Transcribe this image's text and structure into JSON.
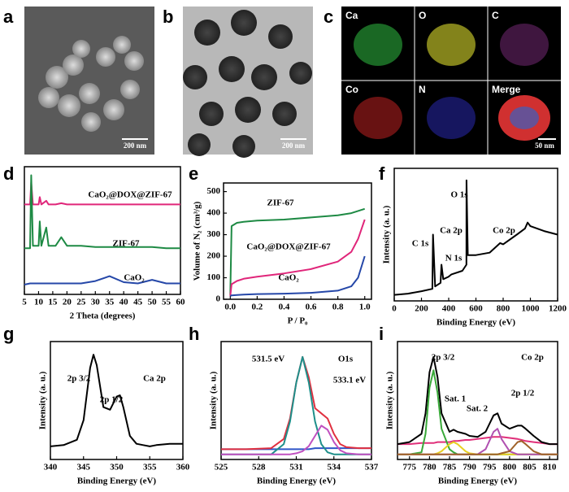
{
  "panel_labels": [
    "a",
    "b",
    "c",
    "d",
    "e",
    "f",
    "g",
    "h",
    "i"
  ],
  "images": {
    "a_scale": "200 nm",
    "b_scale": "200 nm",
    "c_scale": "50 nm",
    "c_tiles": [
      "Ca",
      "O",
      "C",
      "Co",
      "N",
      "Merge"
    ]
  },
  "chart_data": [
    {
      "type": "line",
      "xlabel": "2 Theta (degrees)",
      "xlim": [
        5,
        60
      ],
      "ylim": [
        0,
        105
      ],
      "xticks": [
        5,
        10,
        15,
        20,
        25,
        30,
        35,
        40,
        45,
        50,
        55,
        60
      ],
      "x": [
        5,
        7,
        7.4,
        8,
        10,
        10.4,
        11,
        12.7,
        13.5,
        16,
        18,
        20,
        25,
        30,
        35,
        40,
        45,
        50,
        55,
        60
      ],
      "annotations": [
        "CaO₂@DOX@ZIF-67",
        "ZIF-67",
        "CaO₂"
      ],
      "series": [
        {
          "color": "#e0267a",
          "values": [
            74,
            74,
            92,
            74,
            74,
            80,
            74,
            77,
            74,
            74,
            75,
            74,
            74,
            74,
            74,
            74,
            74,
            74,
            74,
            74
          ]
        },
        {
          "color": "#1e8a44",
          "values": [
            38,
            38,
            98,
            40,
            40,
            60,
            40,
            55,
            40,
            40,
            47,
            40,
            40,
            39,
            39,
            39,
            39,
            39,
            38,
            38
          ]
        },
        {
          "color": "#2547a8",
          "values": [
            8,
            9,
            9,
            9,
            9,
            9,
            9,
            9,
            9,
            9,
            9,
            9,
            9,
            11,
            15,
            10,
            9,
            12,
            9,
            9
          ]
        }
      ]
    },
    {
      "type": "line",
      "xlabel": "P / P₀",
      "ylabel": "Volume of N₂ (cm³/g)",
      "xlim": [
        -0.05,
        1.05
      ],
      "ylim": [
        0,
        540
      ],
      "xticks": [
        {
          "value": 0,
          "label": "0.0"
        },
        0.2,
        0.4,
        0.6,
        0.8,
        {
          "value": 1,
          "label": "1.0"
        }
      ],
      "yticks": [
        0,
        100,
        200,
        300,
        400,
        500
      ],
      "x": [
        0,
        0.01,
        0.05,
        0.1,
        0.2,
        0.4,
        0.6,
        0.8,
        0.9,
        0.95,
        1.0
      ],
      "annotations": [
        "ZIF-67",
        "CaO₂@DOX@ZIF-67",
        "CaO₂"
      ],
      "series": [
        {
          "color": "#1e8a44",
          "values": [
            20,
            340,
            355,
            360,
            365,
            370,
            380,
            390,
            400,
            410,
            420
          ]
        },
        {
          "color": "#e0267a",
          "values": [
            15,
            70,
            85,
            95,
            105,
            120,
            140,
            175,
            220,
            280,
            370
          ]
        },
        {
          "color": "#2547a8",
          "values": [
            15,
            18,
            20,
            22,
            24,
            26,
            30,
            40,
            60,
            100,
            200
          ]
        }
      ]
    },
    {
      "type": "line",
      "xlabel": "Binding Energy (eV)",
      "ylabel": "Intensity (a. u.)",
      "xlim": [
        0,
        1200
      ],
      "ylim": [
        0,
        110
      ],
      "xticks": [
        0,
        200,
        400,
        600,
        800,
        1000,
        1200
      ],
      "x": [
        0,
        100,
        200,
        280,
        285,
        300,
        340,
        347,
        360,
        398,
        420,
        500,
        530,
        531,
        540,
        600,
        700,
        778,
        800,
        900,
        960,
        980,
        1000,
        1100,
        1200
      ],
      "annotations": [
        "C 1s",
        "Ca 2p",
        "N 1s",
        "O 1s",
        "Co 2p"
      ],
      "series": [
        {
          "color": "#000000",
          "values": [
            5,
            6,
            8,
            10,
            55,
            12,
            15,
            30,
            18,
            20,
            22,
            25,
            30,
            100,
            38,
            38,
            40,
            48,
            47,
            55,
            60,
            65,
            62,
            58,
            55
          ]
        }
      ]
    },
    {
      "type": "line",
      "xlabel": "Binding Energy (eV)",
      "ylabel": "Intensity (a. u.)",
      "xlim": [
        340,
        360
      ],
      "ylim": [
        0,
        90
      ],
      "xticks": [
        340,
        345,
        350,
        355,
        360
      ],
      "x": [
        340,
        342,
        344,
        345,
        346,
        346.5,
        347,
        348,
        349,
        350,
        350.5,
        351,
        352,
        353,
        354,
        355,
        356,
        358,
        360
      ],
      "annotations": [
        "2p 3/2",
        "2p 1/2",
        "Ca 2p"
      ],
      "series": [
        {
          "color": "#000000",
          "values": [
            10,
            11,
            15,
            30,
            70,
            80,
            72,
            40,
            38,
            48,
            49,
            40,
            18,
            12,
            11,
            10,
            11,
            12,
            12
          ]
        }
      ]
    },
    {
      "type": "line",
      "xlabel": "Binding Energy (eV)",
      "ylabel": "Intensity (a. u.)",
      "xlim": [
        525,
        537
      ],
      "ylim": [
        -5,
        110
      ],
      "xticks": [
        525,
        528,
        531,
        534,
        537
      ],
      "x": [
        525,
        527,
        529,
        530,
        530.5,
        531,
        531.5,
        532,
        532.5,
        533,
        533.5,
        534,
        534.5,
        535,
        536,
        537
      ],
      "annotations": [
        "531.5 eV",
        "533.1 eV",
        "O1s"
      ],
      "series": [
        {
          "color": "#2f55c8",
          "values": [
            5,
            5,
            5,
            5,
            5,
            5,
            5,
            5,
            6,
            6,
            6,
            6,
            6,
            6,
            6,
            6
          ]
        },
        {
          "color": "#e03040",
          "values": [
            5,
            5,
            6,
            15,
            35,
            70,
            95,
            75,
            45,
            40,
            35,
            20,
            10,
            7,
            6,
            6
          ]
        },
        {
          "color": "#1f8f8a",
          "values": [
            0,
            0,
            0,
            10,
            32,
            70,
            95,
            70,
            32,
            10,
            2,
            0,
            0,
            0,
            0,
            0
          ]
        },
        {
          "color": "#c050c0",
          "values": [
            0,
            0,
            0,
            0,
            0,
            1,
            3,
            8,
            18,
            28,
            24,
            12,
            4,
            1,
            0,
            0
          ]
        }
      ]
    },
    {
      "type": "line",
      "xlabel": "Binding Energy (eV)",
      "ylabel": "Intensity (a. u.)",
      "xlim": [
        772,
        812
      ],
      "ylim": [
        -5,
        110
      ],
      "xticks": [
        775,
        780,
        785,
        790,
        795,
        800,
        805,
        810
      ],
      "x": [
        772,
        775,
        778,
        779,
        780,
        781,
        782,
        783,
        785,
        786,
        787,
        789,
        790,
        792,
        794,
        796,
        797,
        798,
        800,
        802,
        803,
        804,
        806,
        808,
        810,
        812
      ],
      "annotations": [
        "2p 3/2",
        "Sat. 1",
        "Sat. 2",
        "2p 1/2",
        "Co 2p"
      ],
      "series": [
        {
          "color": "#e0307a",
          "values": [
            10,
            10,
            11,
            11,
            11,
            11,
            12,
            12,
            12,
            13,
            13,
            14,
            14,
            15,
            16,
            17,
            17,
            17,
            16,
            15,
            14,
            13,
            12,
            11,
            10,
            10
          ]
        },
        {
          "color": "#000000",
          "values": [
            10,
            12,
            20,
            40,
            80,
            95,
            75,
            40,
            22,
            24,
            22,
            20,
            18,
            17,
            22,
            38,
            40,
            30,
            25,
            28,
            28,
            25,
            18,
            12,
            10,
            10
          ]
        },
        {
          "color": "#38a838",
          "values": [
            0,
            0,
            2,
            20,
            65,
            82,
            60,
            25,
            5,
            2,
            0,
            0,
            0,
            0,
            0,
            0,
            0,
            0,
            0,
            0,
            0,
            0,
            0,
            0,
            0,
            0
          ]
        },
        {
          "color": "#e8d020",
          "values": [
            0,
            0,
            0,
            0,
            0,
            0,
            1,
            3,
            10,
            12,
            10,
            3,
            1,
            0,
            0,
            0,
            0,
            0,
            0,
            0,
            0,
            0,
            0,
            0,
            0,
            0
          ]
        },
        {
          "color": "#b050b0",
          "values": [
            0,
            0,
            0,
            0,
            0,
            0,
            0,
            0,
            0,
            0,
            0,
            0,
            0,
            0,
            5,
            22,
            25,
            15,
            3,
            0,
            0,
            0,
            0,
            0,
            0,
            0
          ]
        },
        {
          "color": "#a0622a",
          "values": [
            0,
            0,
            0,
            0,
            0,
            0,
            0,
            0,
            0,
            0,
            0,
            0,
            0,
            0,
            0,
            0,
            0,
            1,
            3,
            12,
            13,
            10,
            3,
            0,
            0,
            0
          ]
        }
      ]
    }
  ]
}
